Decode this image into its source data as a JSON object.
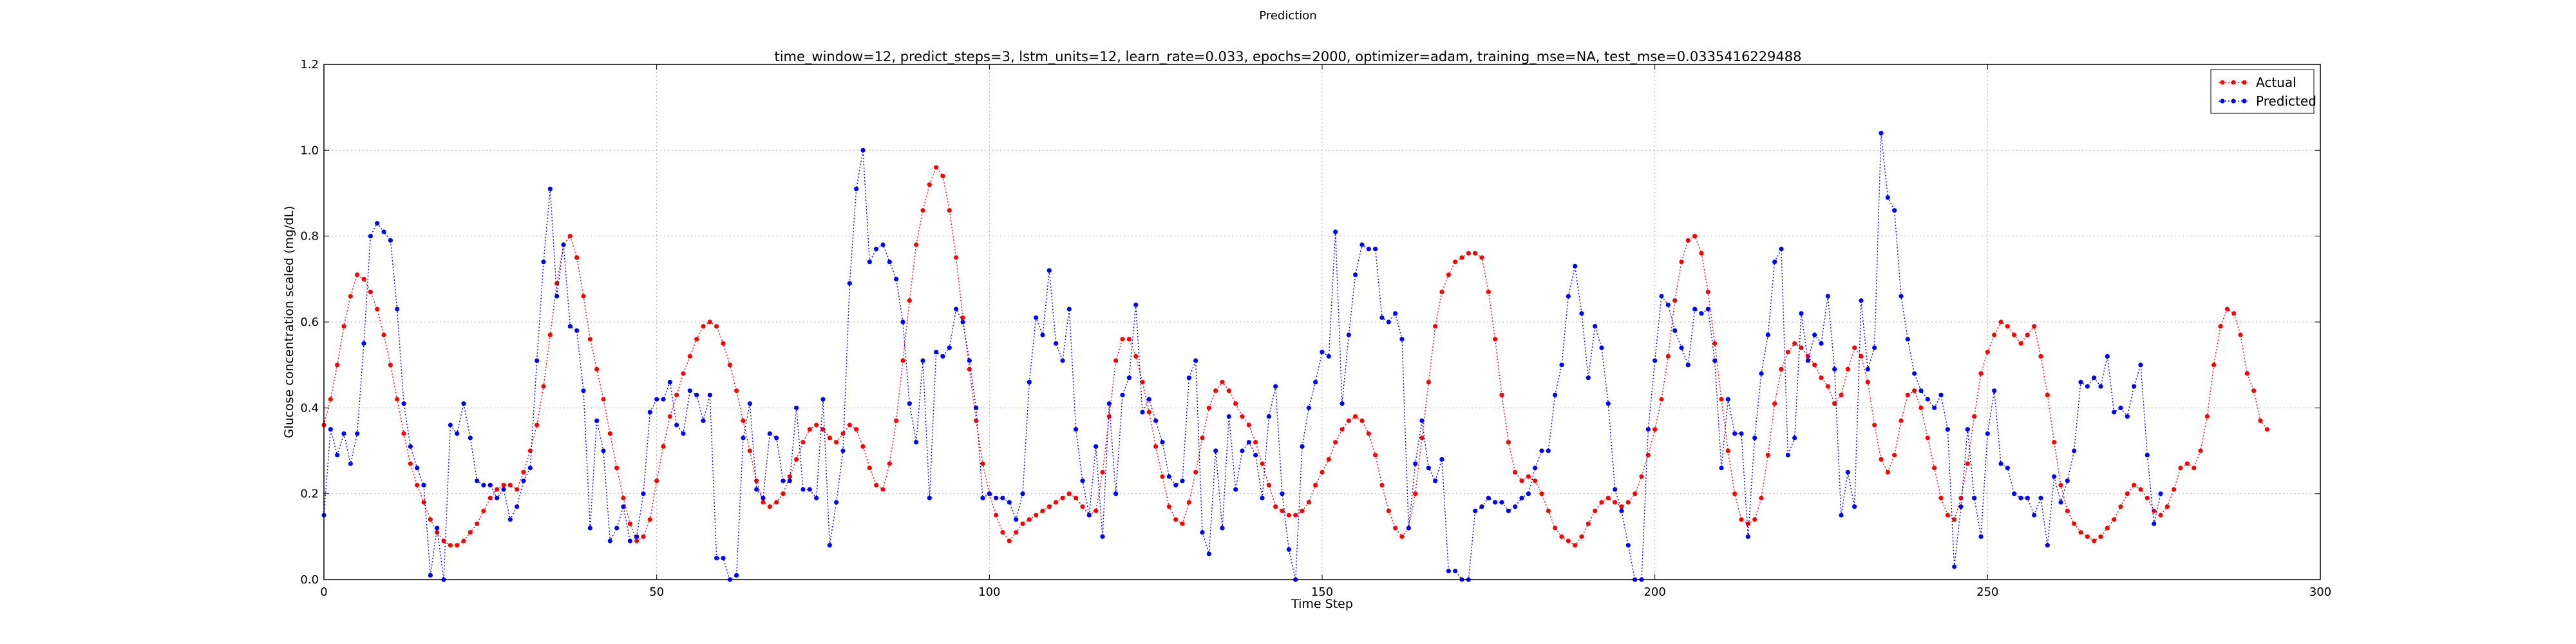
{
  "figure": {
    "title": "Prediction",
    "subtitle": "time_window=12, predict_steps=3, lstm_units=12, learn_rate=0.033, epochs=2000, optimizer=adam, training_mse=NA, test_mse=0.0335416229488"
  },
  "chart_data": {
    "type": "line",
    "title": "time_window=12, predict_steps=3, lstm_units=12, learn_rate=0.033, epochs=2000, optimizer=adam, training_mse=NA, test_mse=0.0335416229488",
    "xlabel": "Time Step",
    "ylabel": "Glucose concentration scaled (mg/dL)",
    "xlim": [
      0,
      300
    ],
    "ylim": [
      0.0,
      1.2
    ],
    "xticks": [
      0,
      50,
      100,
      150,
      200,
      250,
      300
    ],
    "yticks": [
      0.0,
      0.2,
      0.4,
      0.6,
      0.8,
      1.0,
      1.2
    ],
    "grid": true,
    "legend_position": "top-right",
    "series": [
      {
        "name": "Actual",
        "color": "#ff0000",
        "style": "dotted-line-with-dots",
        "values": [
          0.36,
          0.42,
          0.5,
          0.59,
          0.66,
          0.71,
          0.7,
          0.67,
          0.63,
          0.57,
          0.5,
          0.42,
          0.34,
          0.27,
          0.22,
          0.18,
          0.14,
          0.11,
          0.09,
          0.08,
          0.08,
          0.09,
          0.11,
          0.13,
          0.16,
          0.19,
          0.21,
          0.22,
          0.22,
          0.21,
          0.25,
          0.3,
          0.36,
          0.45,
          0.57,
          0.69,
          0.78,
          0.8,
          0.75,
          0.66,
          0.56,
          0.49,
          0.42,
          0.34,
          0.26,
          0.19,
          0.13,
          0.09,
          0.1,
          0.14,
          0.23,
          0.31,
          0.38,
          0.43,
          0.48,
          0.52,
          0.56,
          0.59,
          0.6,
          0.59,
          0.55,
          0.5,
          0.44,
          0.37,
          0.3,
          0.23,
          0.18,
          0.17,
          0.18,
          0.2,
          0.24,
          0.28,
          0.32,
          0.35,
          0.36,
          0.35,
          0.33,
          0.32,
          0.34,
          0.36,
          0.35,
          0.31,
          0.26,
          0.22,
          0.21,
          0.27,
          0.37,
          0.51,
          0.65,
          0.78,
          0.86,
          0.92,
          0.96,
          0.94,
          0.86,
          0.75,
          0.61,
          0.49,
          0.37,
          0.27,
          0.2,
          0.15,
          0.11,
          0.09,
          0.11,
          0.13,
          0.14,
          0.15,
          0.16,
          0.17,
          0.18,
          0.19,
          0.2,
          0.19,
          0.17,
          0.15,
          0.16,
          0.25,
          0.38,
          0.51,
          0.56,
          0.56,
          0.52,
          0.46,
          0.39,
          0.31,
          0.24,
          0.17,
          0.14,
          0.13,
          0.18,
          0.25,
          0.33,
          0.4,
          0.44,
          0.46,
          0.44,
          0.41,
          0.38,
          0.36,
          0.32,
          0.27,
          0.22,
          0.17,
          0.16,
          0.15,
          0.15,
          0.16,
          0.18,
          0.22,
          0.25,
          0.28,
          0.32,
          0.35,
          0.37,
          0.38,
          0.37,
          0.34,
          0.29,
          0.22,
          0.16,
          0.12,
          0.1,
          0.12,
          0.2,
          0.33,
          0.46,
          0.59,
          0.67,
          0.71,
          0.74,
          0.75,
          0.76,
          0.76,
          0.75,
          0.67,
          0.56,
          0.43,
          0.32,
          0.25,
          0.23,
          0.24,
          0.23,
          0.2,
          0.16,
          0.12,
          0.1,
          0.09,
          0.08,
          0.1,
          0.13,
          0.16,
          0.18,
          0.19,
          0.18,
          0.17,
          0.18,
          0.2,
          0.24,
          0.29,
          0.35,
          0.42,
          0.52,
          0.65,
          0.74,
          0.79,
          0.8,
          0.76,
          0.67,
          0.55,
          0.42,
          0.3,
          0.2,
          0.14,
          0.13,
          0.14,
          0.19,
          0.29,
          0.41,
          0.49,
          0.53,
          0.55,
          0.54,
          0.52,
          0.5,
          0.47,
          0.45,
          0.41,
          0.43,
          0.49,
          0.54,
          0.52,
          0.46,
          0.36,
          0.28,
          0.25,
          0.29,
          0.37,
          0.43,
          0.44,
          0.4,
          0.33,
          0.26,
          0.19,
          0.15,
          0.14,
          0.19,
          0.27,
          0.38,
          0.48,
          0.53,
          0.57,
          0.6,
          0.59,
          0.57,
          0.55,
          0.57,
          0.59,
          0.52,
          0.43,
          0.32,
          0.22,
          0.16,
          0.13,
          0.11,
          0.1,
          0.09,
          0.1,
          0.12,
          0.14,
          0.17,
          0.2,
          0.22,
          0.21,
          0.19,
          0.16,
          0.15,
          0.17,
          0.21,
          0.26,
          0.27,
          0.26,
          0.3,
          0.38,
          0.5,
          0.59,
          0.63,
          0.62,
          0.57,
          0.48,
          0.44,
          0.37,
          0.35
        ],
        "x_start": 0
      },
      {
        "name": "Predicted",
        "color": "#0000ff",
        "style": "dotted-line-with-dots",
        "values": [
          0.15,
          0.35,
          0.29,
          0.34,
          0.27,
          0.34,
          0.55,
          0.8,
          0.83,
          0.81,
          0.79,
          0.63,
          0.41,
          0.31,
          0.26,
          0.22,
          0.01,
          0.12,
          0.0,
          0.36,
          0.34,
          0.41,
          0.33,
          0.23,
          0.22,
          0.22,
          0.19,
          0.21,
          0.14,
          0.17,
          0.23,
          0.26,
          0.51,
          0.74,
          0.91,
          0.66,
          0.78,
          0.59,
          0.58,
          0.44,
          0.12,
          0.37,
          0.3,
          0.09,
          0.12,
          0.17,
          0.09,
          0.1,
          0.2,
          0.39,
          0.42,
          0.42,
          0.46,
          0.36,
          0.34,
          0.44,
          0.43,
          0.37,
          0.43,
          0.05,
          0.05,
          0.0,
          0.01,
          0.33,
          0.41,
          0.21,
          0.19,
          0.34,
          0.33,
          0.23,
          0.23,
          0.4,
          0.21,
          0.21,
          0.19,
          0.42,
          0.08,
          0.18,
          0.3,
          0.69,
          0.91,
          1.0,
          0.74,
          0.77,
          0.78,
          0.74,
          0.7,
          0.6,
          0.41,
          0.32,
          0.51,
          0.19,
          0.53,
          0.52,
          0.54,
          0.63,
          0.6,
          0.51,
          0.4,
          0.19,
          0.2,
          0.19,
          0.19,
          0.18,
          0.14,
          0.2,
          0.46,
          0.61,
          0.57,
          0.72,
          0.55,
          0.51,
          0.63,
          0.35,
          0.23,
          0.15,
          0.31,
          0.1,
          0.41,
          0.2,
          0.43,
          0.47,
          0.64,
          0.39,
          0.42,
          0.37,
          0.32,
          0.24,
          0.22,
          0.23,
          0.47,
          0.51,
          0.11,
          0.06,
          0.3,
          0.12,
          0.38,
          0.21,
          0.3,
          0.32,
          0.29,
          0.19,
          0.38,
          0.45,
          0.2,
          0.07,
          0.0,
          0.31,
          0.4,
          0.46,
          0.53,
          0.52,
          0.81,
          0.41,
          0.57,
          0.71,
          0.78,
          0.77,
          0.77,
          0.61,
          0.6,
          0.62,
          0.56,
          0.12,
          0.27,
          0.37,
          0.26,
          0.23,
          0.28,
          0.02,
          0.02,
          0.0,
          0.0,
          0.16,
          0.17,
          0.19,
          0.18,
          0.18,
          0.16,
          0.17,
          0.19,
          0.2,
          0.26,
          0.3,
          0.3,
          0.43,
          0.5,
          0.66,
          0.73,
          0.62,
          0.47,
          0.59,
          0.54,
          0.41,
          0.21,
          0.16,
          0.08,
          0.0,
          0.0,
          0.35,
          0.51,
          0.66,
          0.64,
          0.58,
          0.54,
          0.5,
          0.63,
          0.62,
          0.63,
          0.51,
          0.26,
          0.42,
          0.34,
          0.34,
          0.1,
          0.33,
          0.48,
          0.57,
          0.74,
          0.77,
          0.29,
          0.33,
          0.62,
          0.51,
          0.57,
          0.55,
          0.66,
          0.49,
          0.15,
          0.25,
          0.17,
          0.65,
          0.49,
          0.54,
          1.04,
          0.89,
          0.86,
          0.66,
          0.56,
          0.48,
          0.44,
          0.42,
          0.4,
          0.43,
          0.35,
          0.03,
          0.17,
          0.35,
          0.19,
          0.1,
          0.34,
          0.44,
          0.27,
          0.26,
          0.2,
          0.19,
          0.19,
          0.15,
          0.19,
          0.08,
          0.24,
          0.18,
          0.23,
          0.3,
          0.46,
          0.45,
          0.47,
          0.45,
          0.52,
          0.39,
          0.4,
          0.38,
          0.45,
          0.5,
          0.29,
          0.13,
          0.2
        ],
        "x_start": 0
      }
    ]
  }
}
